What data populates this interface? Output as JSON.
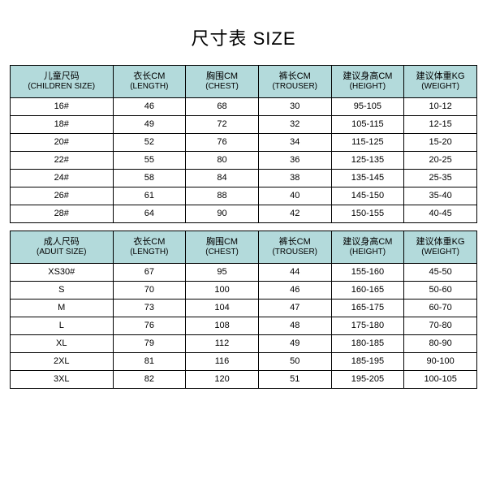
{
  "title": "尺寸表 SIZE",
  "children_table": {
    "header_color": "#b3dadb",
    "columns": [
      {
        "cn": "儿童尺码",
        "en": "(CHILDREN SIZE)"
      },
      {
        "cn": "衣长CM",
        "en": "(LENGTH)"
      },
      {
        "cn": "胸围CM",
        "en": "(CHEST)"
      },
      {
        "cn": "裤长CM",
        "en": "(TROUSER)"
      },
      {
        "cn": "建议身高CM",
        "en": "(HEIGHT)"
      },
      {
        "cn": "建议体重KG",
        "en": "(WEIGHT)"
      }
    ],
    "rows": [
      [
        "16#",
        "46",
        "68",
        "30",
        "95-105",
        "10-12"
      ],
      [
        "18#",
        "49",
        "72",
        "32",
        "105-115",
        "12-15"
      ],
      [
        "20#",
        "52",
        "76",
        "34",
        "115-125",
        "15-20"
      ],
      [
        "22#",
        "55",
        "80",
        "36",
        "125-135",
        "20-25"
      ],
      [
        "24#",
        "58",
        "84",
        "38",
        "135-145",
        "25-35"
      ],
      [
        "26#",
        "61",
        "88",
        "40",
        "145-150",
        "35-40"
      ],
      [
        "28#",
        "64",
        "90",
        "42",
        "150-155",
        "40-45"
      ]
    ]
  },
  "adult_table": {
    "header_color": "#b3dadb",
    "columns": [
      {
        "cn": "成人尺码",
        "en": "(ADUIT SIZE)"
      },
      {
        "cn": "衣长CM",
        "en": "(LENGTH)"
      },
      {
        "cn": "胸围CM",
        "en": "(CHEST)"
      },
      {
        "cn": "裤长CM",
        "en": "(TROUSER)"
      },
      {
        "cn": "建议身高CM",
        "en": "(HEIGHT)"
      },
      {
        "cn": "建议体重KG",
        "en": "(WEIGHT)"
      }
    ],
    "rows": [
      [
        "XS30#",
        "67",
        "95",
        "44",
        "155-160",
        "45-50"
      ],
      [
        "S",
        "70",
        "100",
        "46",
        "160-165",
        "50-60"
      ],
      [
        "M",
        "73",
        "104",
        "47",
        "165-175",
        "60-70"
      ],
      [
        "L",
        "76",
        "108",
        "48",
        "175-180",
        "70-80"
      ],
      [
        "XL",
        "79",
        "112",
        "49",
        "180-185",
        "80-90"
      ],
      [
        "2XL",
        "81",
        "116",
        "50",
        "185-195",
        "90-100"
      ],
      [
        "3XL",
        "82",
        "120",
        "51",
        "195-205",
        "100-105"
      ]
    ]
  }
}
